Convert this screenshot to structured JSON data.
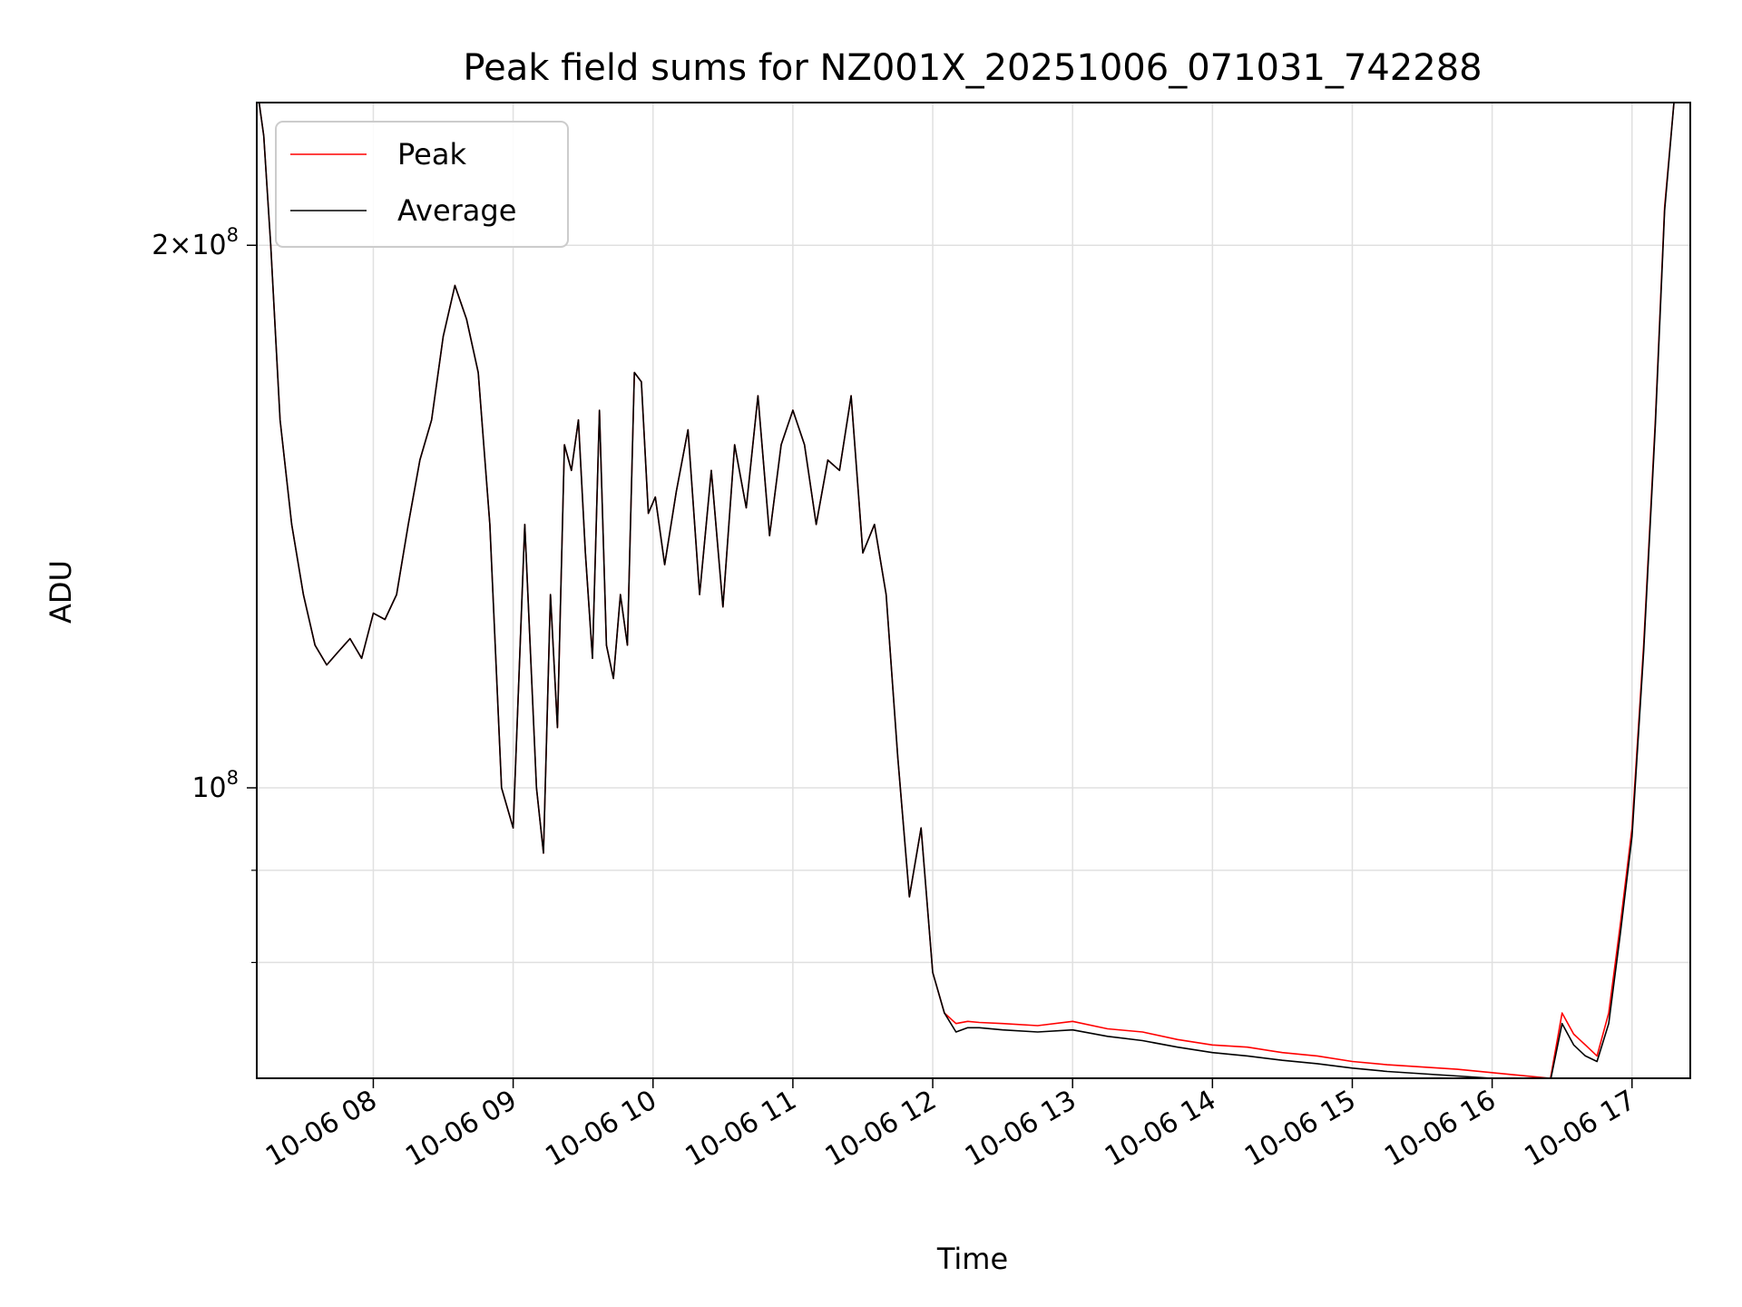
{
  "chart_data": {
    "type": "line",
    "title": "Peak field sums for NZ001X_20251006_071031_742288",
    "xlabel": "Time",
    "ylabel": "ADU",
    "yscale": "log",
    "grid": true,
    "legend": "upper-left",
    "xlim": [
      "2025-10-06 07:10",
      "2025-10-06 17:25"
    ],
    "ylim": [
      69000000,
      240000000
    ],
    "x_ticks": [
      "10-06 08",
      "10-06 09",
      "10-06 10",
      "10-06 11",
      "10-06 12",
      "10-06 13",
      "10-06 14",
      "10-06 15",
      "10-06 16",
      "10-06 17"
    ],
    "x_tick_values": [
      "2025-10-06 08:00",
      "2025-10-06 09:00",
      "2025-10-06 10:00",
      "2025-10-06 11:00",
      "2025-10-06 12:00",
      "2025-10-06 13:00",
      "2025-10-06 14:00",
      "2025-10-06 15:00",
      "2025-10-06 16:00",
      "2025-10-06 17:00"
    ],
    "y_major_ticks": [
      {
        "value": 100000000,
        "base": "10",
        "exp": "8",
        "prefix": ""
      },
      {
        "value": 200000000,
        "base": "10",
        "exp": "8",
        "prefix": "2×"
      }
    ],
    "y_minor_ticks": [
      80000000,
      90000000
    ],
    "series": [
      {
        "name": "Peak",
        "color": "#ff0000",
        "x": [
          "2025-10-06 07:11",
          "2025-10-06 07:13",
          "2025-10-06 07:16",
          "2025-10-06 07:20",
          "2025-10-06 07:25",
          "2025-10-06 07:30",
          "2025-10-06 07:35",
          "2025-10-06 07:40",
          "2025-10-06 07:45",
          "2025-10-06 07:50",
          "2025-10-06 07:55",
          "2025-10-06 08:00",
          "2025-10-06 08:05",
          "2025-10-06 08:10",
          "2025-10-06 08:15",
          "2025-10-06 08:20",
          "2025-10-06 08:25",
          "2025-10-06 08:30",
          "2025-10-06 08:35",
          "2025-10-06 08:40",
          "2025-10-06 08:45",
          "2025-10-06 08:50",
          "2025-10-06 08:55",
          "2025-10-06 09:00",
          "2025-10-06 09:05",
          "2025-10-06 09:10",
          "2025-10-06 09:13",
          "2025-10-06 09:16",
          "2025-10-06 09:19",
          "2025-10-06 09:22",
          "2025-10-06 09:25",
          "2025-10-06 09:28",
          "2025-10-06 09:31",
          "2025-10-06 09:34",
          "2025-10-06 09:37",
          "2025-10-06 09:40",
          "2025-10-06 09:43",
          "2025-10-06 09:46",
          "2025-10-06 09:49",
          "2025-10-06 09:52",
          "2025-10-06 09:55",
          "2025-10-06 09:58",
          "2025-10-06 10:01",
          "2025-10-06 10:05",
          "2025-10-06 10:10",
          "2025-10-06 10:15",
          "2025-10-06 10:20",
          "2025-10-06 10:25",
          "2025-10-06 10:30",
          "2025-10-06 10:35",
          "2025-10-06 10:40",
          "2025-10-06 10:45",
          "2025-10-06 10:50",
          "2025-10-06 10:55",
          "2025-10-06 11:00",
          "2025-10-06 11:05",
          "2025-10-06 11:10",
          "2025-10-06 11:15",
          "2025-10-06 11:20",
          "2025-10-06 11:25",
          "2025-10-06 11:30",
          "2025-10-06 11:35",
          "2025-10-06 11:40",
          "2025-10-06 11:45",
          "2025-10-06 11:50",
          "2025-10-06 11:55",
          "2025-10-06 12:00",
          "2025-10-06 12:05",
          "2025-10-06 12:10",
          "2025-10-06 12:15",
          "2025-10-06 12:20",
          "2025-10-06 12:30",
          "2025-10-06 12:45",
          "2025-10-06 13:00",
          "2025-10-06 13:15",
          "2025-10-06 13:30",
          "2025-10-06 13:45",
          "2025-10-06 14:00",
          "2025-10-06 14:15",
          "2025-10-06 14:30",
          "2025-10-06 14:45",
          "2025-10-06 15:00",
          "2025-10-06 15:15",
          "2025-10-06 15:30",
          "2025-10-06 15:45",
          "2025-10-06 16:00",
          "2025-10-06 16:10",
          "2025-10-06 16:20",
          "2025-10-06 16:25",
          "2025-10-06 16:30",
          "2025-10-06 16:35",
          "2025-10-06 16:40",
          "2025-10-06 16:45",
          "2025-10-06 16:50",
          "2025-10-06 16:55",
          "2025-10-06 17:00",
          "2025-10-06 17:05",
          "2025-10-06 17:10",
          "2025-10-06 17:14",
          "2025-10-06 17:18",
          "2025-10-06 17:24"
        ],
        "values": [
          240000000,
          230000000,
          200000000,
          160000000,
          140000000,
          128000000,
          120000000,
          117000000,
          119000000,
          121000000,
          118000000,
          125000000,
          124000000,
          128000000,
          140000000,
          152000000,
          160000000,
          178000000,
          190000000,
          182000000,
          170000000,
          140000000,
          100000000,
          95000000,
          140000000,
          100000000,
          92000000,
          128000000,
          108000000,
          155000000,
          150000000,
          160000000,
          135000000,
          118000000,
          162000000,
          120000000,
          115000000,
          128000000,
          120000000,
          170000000,
          168000000,
          142000000,
          145000000,
          133000000,
          146000000,
          158000000,
          128000000,
          150000000,
          126000000,
          155000000,
          143000000,
          165000000,
          138000000,
          155000000,
          162000000,
          155000000,
          140000000,
          152000000,
          150000000,
          165000000,
          135000000,
          140000000,
          128000000,
          104000000,
          87000000,
          95000000,
          79000000,
          75000000,
          74000000,
          74200000,
          74100000,
          74000000,
          73800000,
          74200000,
          73500000,
          73200000,
          72500000,
          72000000,
          71800000,
          71300000,
          71000000,
          70500000,
          70200000,
          70000000,
          69800000,
          69500000,
          69300000,
          69100000,
          69000000,
          75000000,
          73000000,
          72000000,
          71000000,
          75000000,
          84000000,
          95000000,
          120000000,
          160000000,
          210000000,
          240000000,
          240000000
        ]
      },
      {
        "name": "Average",
        "color": "#000000",
        "x": [
          "2025-10-06 07:11",
          "2025-10-06 07:13",
          "2025-10-06 07:16",
          "2025-10-06 07:20",
          "2025-10-06 07:25",
          "2025-10-06 07:30",
          "2025-10-06 07:35",
          "2025-10-06 07:40",
          "2025-10-06 07:45",
          "2025-10-06 07:50",
          "2025-10-06 07:55",
          "2025-10-06 08:00",
          "2025-10-06 08:05",
          "2025-10-06 08:10",
          "2025-10-06 08:15",
          "2025-10-06 08:20",
          "2025-10-06 08:25",
          "2025-10-06 08:30",
          "2025-10-06 08:35",
          "2025-10-06 08:40",
          "2025-10-06 08:45",
          "2025-10-06 08:50",
          "2025-10-06 08:55",
          "2025-10-06 09:00",
          "2025-10-06 09:05",
          "2025-10-06 09:10",
          "2025-10-06 09:13",
          "2025-10-06 09:16",
          "2025-10-06 09:19",
          "2025-10-06 09:22",
          "2025-10-06 09:25",
          "2025-10-06 09:28",
          "2025-10-06 09:31",
          "2025-10-06 09:34",
          "2025-10-06 09:37",
          "2025-10-06 09:40",
          "2025-10-06 09:43",
          "2025-10-06 09:46",
          "2025-10-06 09:49",
          "2025-10-06 09:52",
          "2025-10-06 09:55",
          "2025-10-06 09:58",
          "2025-10-06 10:01",
          "2025-10-06 10:05",
          "2025-10-06 10:10",
          "2025-10-06 10:15",
          "2025-10-06 10:20",
          "2025-10-06 10:25",
          "2025-10-06 10:30",
          "2025-10-06 10:35",
          "2025-10-06 10:40",
          "2025-10-06 10:45",
          "2025-10-06 10:50",
          "2025-10-06 10:55",
          "2025-10-06 11:00",
          "2025-10-06 11:05",
          "2025-10-06 11:10",
          "2025-10-06 11:15",
          "2025-10-06 11:20",
          "2025-10-06 11:25",
          "2025-10-06 11:30",
          "2025-10-06 11:35",
          "2025-10-06 11:40",
          "2025-10-06 11:45",
          "2025-10-06 11:50",
          "2025-10-06 11:55",
          "2025-10-06 12:00",
          "2025-10-06 12:05",
          "2025-10-06 12:10",
          "2025-10-06 12:15",
          "2025-10-06 12:20",
          "2025-10-06 12:30",
          "2025-10-06 12:45",
          "2025-10-06 13:00",
          "2025-10-06 13:15",
          "2025-10-06 13:30",
          "2025-10-06 13:45",
          "2025-10-06 14:00",
          "2025-10-06 14:15",
          "2025-10-06 14:30",
          "2025-10-06 14:45",
          "2025-10-06 15:00",
          "2025-10-06 15:15",
          "2025-10-06 15:30",
          "2025-10-06 15:45",
          "2025-10-06 16:00",
          "2025-10-06 16:10",
          "2025-10-06 16:20",
          "2025-10-06 16:25",
          "2025-10-06 16:30",
          "2025-10-06 16:35",
          "2025-10-06 16:40",
          "2025-10-06 16:45",
          "2025-10-06 16:50",
          "2025-10-06 16:55",
          "2025-10-06 17:00",
          "2025-10-06 17:05",
          "2025-10-06 17:10",
          "2025-10-06 17:14",
          "2025-10-06 17:18",
          "2025-10-06 17:24"
        ],
        "values": [
          240000000,
          230000000,
          200000000,
          160000000,
          140000000,
          128000000,
          120000000,
          117000000,
          119000000,
          121000000,
          118000000,
          125000000,
          124000000,
          128000000,
          140000000,
          152000000,
          160000000,
          178000000,
          190000000,
          182000000,
          170000000,
          140000000,
          100000000,
          95000000,
          140000000,
          100000000,
          92000000,
          128000000,
          108000000,
          155000000,
          150000000,
          160000000,
          135000000,
          118000000,
          162000000,
          120000000,
          115000000,
          128000000,
          120000000,
          170000000,
          168000000,
          142000000,
          145000000,
          133000000,
          146000000,
          158000000,
          128000000,
          150000000,
          126000000,
          155000000,
          143000000,
          165000000,
          138000000,
          155000000,
          162000000,
          155000000,
          140000000,
          152000000,
          150000000,
          165000000,
          135000000,
          140000000,
          128000000,
          104000000,
          87000000,
          95000000,
          79000000,
          75000000,
          73200000,
          73600000,
          73600000,
          73400000,
          73200000,
          73400000,
          72800000,
          72400000,
          71800000,
          71300000,
          71000000,
          70600000,
          70300000,
          69900000,
          69600000,
          69400000,
          69200000,
          69000000,
          68900000,
          68800000,
          68800000,
          74000000,
          72000000,
          71000000,
          70500000,
          74000000,
          83000000,
          94000000,
          119000000,
          159000000,
          209000000,
          240000000,
          240000000
        ]
      }
    ]
  }
}
